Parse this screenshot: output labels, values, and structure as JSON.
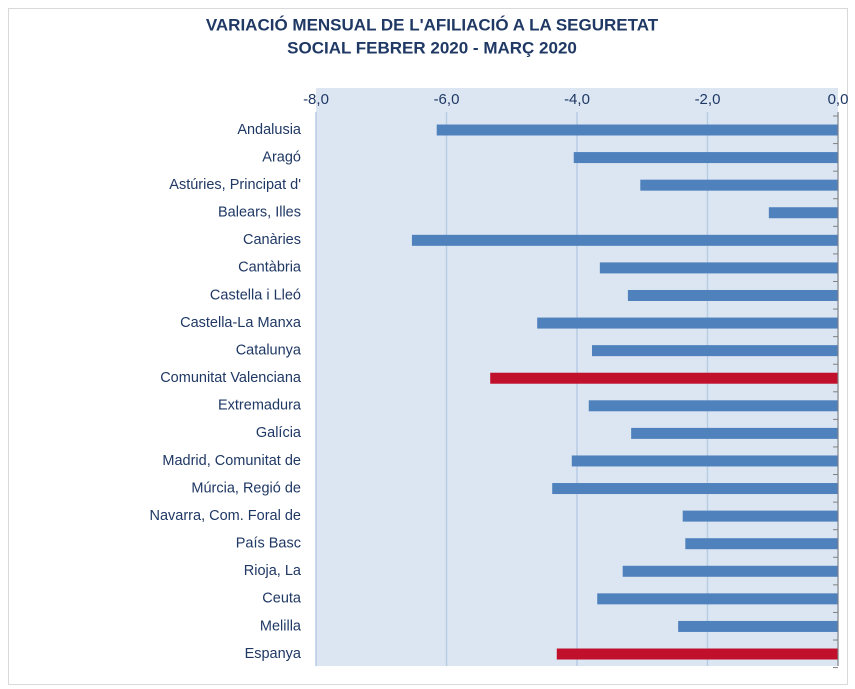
{
  "chart_data": {
    "type": "hbar",
    "title": [
      "VARIACIÓ MENSUAL DE L'AFILIACIÓ A LA SEGURETAT",
      "SOCIAL FEBRER 2020 - MARÇ 2020"
    ],
    "categories": [
      "Andalusia",
      "Aragó",
      "Astúries, Principat d'",
      "Balears, Illes",
      "Canàries",
      "Cantàbria",
      "Castella  i Lleó",
      "Castella-La Manxa",
      "Catalunya",
      "Comunitat Valenciana",
      "Extremadura",
      "Galícia",
      "Madrid, Comunitat de ",
      "Múrcia, Regió de",
      "Navarra, Com. Foral de",
      "País Basc",
      "Rioja, La",
      "Ceuta",
      "Melilla",
      "Espanya"
    ],
    "values": [
      -6.15,
      -4.05,
      -3.03,
      -1.06,
      -6.53,
      -3.65,
      -3.22,
      -4.61,
      -3.77,
      -5.33,
      -3.82,
      -3.17,
      -4.08,
      -4.38,
      -2.38,
      -2.34,
      -3.3,
      -3.69,
      -2.45,
      -4.31
    ],
    "colors": [
      "#4f81bd",
      "#4f81bd",
      "#4f81bd",
      "#4f81bd",
      "#4f81bd",
      "#4f81bd",
      "#4f81bd",
      "#4f81bd",
      "#4f81bd",
      "#c0102c",
      "#4f81bd",
      "#4f81bd",
      "#4f81bd",
      "#4f81bd",
      "#4f81bd",
      "#4f81bd",
      "#4f81bd",
      "#4f81bd",
      "#4f81bd",
      "#c0102c"
    ],
    "xlim": [
      -8,
      0
    ],
    "xticks": [
      {
        "value": -8,
        "label": "-8,0"
      },
      {
        "value": -6,
        "label": "-6,0"
      },
      {
        "value": -4,
        "label": "-4,0"
      },
      {
        "value": -2,
        "label": "-2,0"
      },
      {
        "value": 0,
        "label": "0,0"
      }
    ],
    "grid": true
  }
}
